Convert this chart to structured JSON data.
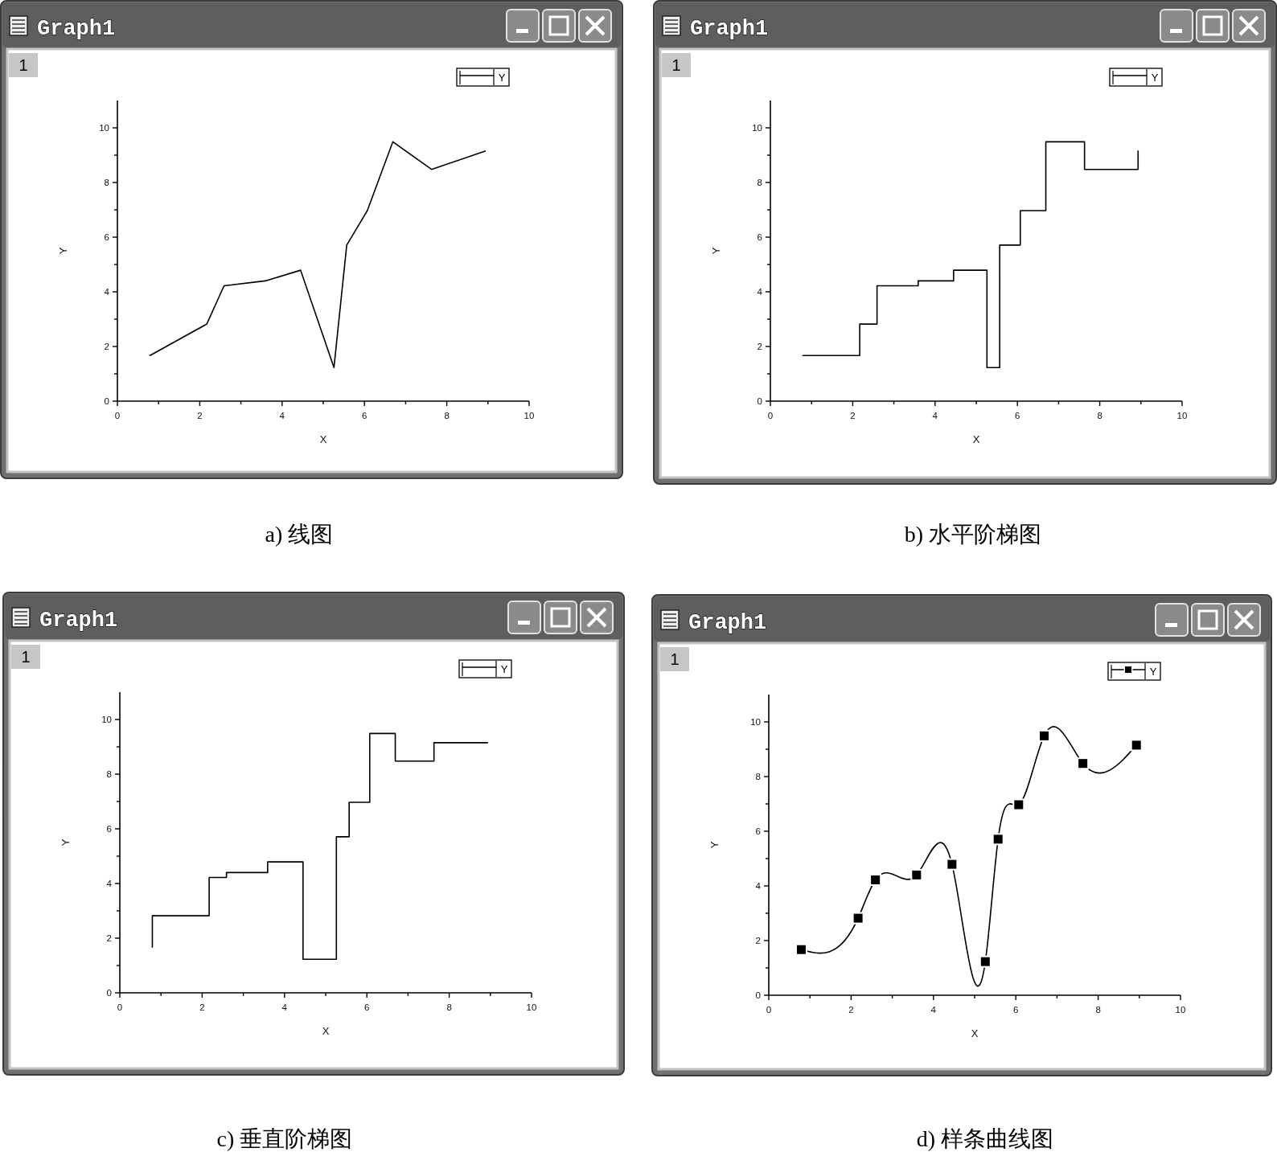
{
  "chart_data": [
    {
      "type": "line",
      "title": "Graph1",
      "xlabel": "X",
      "ylabel": "Y",
      "annotations": [
        "1",
        "a) 线图"
      ],
      "x": [
        0.79,
        2.17,
        2.59,
        3.59,
        4.45,
        5.26,
        5.57,
        6.07,
        6.69,
        7.63,
        8.93
      ],
      "series": [
        {
          "name": "Y",
          "color": "#000000",
          "values": [
            1.67,
            2.82,
            4.22,
            4.4,
            4.79,
            1.23,
            5.71,
            6.97,
            9.49,
            8.48,
            9.15
          ]
        }
      ],
      "line_style": "solid",
      "legend": "top right",
      "xlim": [
        0,
        10
      ],
      "ylim": [
        0,
        11
      ],
      "xticks": [
        0,
        {
          "value": 1,
          "label": null
        },
        2,
        {
          "value": 3,
          "label": null
        },
        4,
        {
          "value": 5,
          "label": null
        },
        6,
        {
          "value": 7,
          "label": null
        },
        8,
        {
          "value": 9,
          "label": null
        },
        10
      ],
      "yticks": [
        0,
        {
          "value": 1,
          "label": null
        },
        2,
        {
          "value": 3,
          "label": null
        },
        4,
        {
          "value": 5,
          "label": null
        },
        6,
        {
          "value": 7,
          "label": null
        },
        8,
        {
          "value": 9,
          "label": null
        },
        10
      ]
    },
    {
      "type": "step",
      "title": "Graph1",
      "xlabel": "X",
      "ylabel": "Y",
      "annotations": [
        "1",
        "b) 水平阶梯图"
      ],
      "x": [
        0.79,
        2.17,
        2.59,
        3.59,
        4.45,
        5.26,
        5.57,
        6.07,
        6.69,
        7.63,
        8.93
      ],
      "series": [
        {
          "name": "Y",
          "color": "#000000",
          "values": [
            1.67,
            2.82,
            4.22,
            4.4,
            4.79,
            1.23,
            5.71,
            6.97,
            9.49,
            8.48,
            9.15
          ]
        }
      ],
      "line_style": "solid",
      "legend": "top right",
      "xlim": [
        0,
        10
      ],
      "ylim": [
        0,
        11
      ],
      "xticks": [
        0,
        {
          "value": 1,
          "label": null
        },
        2,
        {
          "value": 3,
          "label": null
        },
        4,
        {
          "value": 5,
          "label": null
        },
        6,
        {
          "value": 7,
          "label": null
        },
        8,
        {
          "value": 9,
          "label": null
        },
        10
      ],
      "yticks": [
        0,
        {
          "value": 1,
          "label": null
        },
        2,
        {
          "value": 3,
          "label": null
        },
        4,
        {
          "value": 5,
          "label": null
        },
        6,
        {
          "value": 7,
          "label": null
        },
        8,
        {
          "value": 9,
          "label": null
        },
        10
      ]
    },
    {
      "type": "step",
      "title": "Graph1",
      "xlabel": "X",
      "ylabel": "Y",
      "annotations": [
        "1",
        "c) 垂直阶梯图"
      ],
      "x": [
        0.79,
        2.17,
        2.59,
        3.59,
        4.45,
        5.26,
        5.57,
        6.07,
        6.69,
        7.63,
        8.93
      ],
      "series": [
        {
          "name": "Y",
          "color": "#000000",
          "values": [
            1.67,
            2.82,
            4.22,
            4.4,
            4.79,
            1.23,
            5.71,
            6.97,
            9.49,
            8.48,
            9.15
          ]
        }
      ],
      "line_style": "solid",
      "legend": "top right",
      "xlim": [
        0,
        10
      ],
      "ylim": [
        0,
        11
      ],
      "xticks": [
        0,
        {
          "value": 1,
          "label": null
        },
        2,
        {
          "value": 3,
          "label": null
        },
        4,
        {
          "value": 5,
          "label": null
        },
        6,
        {
          "value": 7,
          "label": null
        },
        8,
        {
          "value": 9,
          "label": null
        },
        10
      ],
      "yticks": [
        0,
        {
          "value": 1,
          "label": null
        },
        2,
        {
          "value": 3,
          "label": null
        },
        4,
        {
          "value": 5,
          "label": null
        },
        6,
        {
          "value": 7,
          "label": null
        },
        8,
        {
          "value": 9,
          "label": null
        },
        10
      ]
    },
    {
      "type": "line",
      "title": "Graph1",
      "xlabel": "X",
      "ylabel": "Y",
      "annotations": [
        "1",
        "d) 样条曲线图"
      ],
      "x": [
        0.79,
        2.17,
        2.59,
        3.59,
        4.45,
        5.26,
        5.57,
        6.07,
        6.69,
        7.63,
        8.93
      ],
      "series": [
        {
          "name": "Y",
          "color": "#000000",
          "values": [
            1.67,
            2.82,
            4.22,
            4.4,
            4.79,
            1.23,
            5.71,
            6.97,
            9.49,
            8.48,
            9.15
          ]
        }
      ],
      "marker": "square",
      "line_style": "solid",
      "legend": "top right",
      "xlim": [
        0,
        10
      ],
      "ylim": [
        0,
        11
      ],
      "xticks": [
        0,
        {
          "value": 1,
          "label": null
        },
        2,
        {
          "value": 3,
          "label": null
        },
        4,
        {
          "value": 5,
          "label": null
        },
        6,
        {
          "value": 7,
          "label": null
        },
        8,
        {
          "value": 9,
          "label": null
        },
        10
      ],
      "yticks": [
        0,
        {
          "value": 1,
          "label": null
        },
        2,
        {
          "value": 3,
          "label": null
        },
        4,
        {
          "value": 5,
          "label": null
        },
        6,
        {
          "value": 7,
          "label": null
        },
        8,
        {
          "value": 9,
          "label": null
        },
        10
      ]
    }
  ]
}
